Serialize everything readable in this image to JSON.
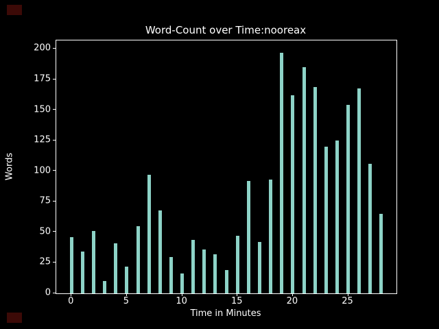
{
  "figure": {
    "background_color": "#000000",
    "text_color": "#ffffff",
    "spine_color": "#ffffff",
    "corner_marker_color": "#3c0a07"
  },
  "chart_data": {
    "type": "bar",
    "title": "Word-Count over Time:nooreax",
    "xlabel": "Time in Minutes",
    "ylabel": "Words",
    "bar_color": "#8dd3c7",
    "x": [
      0,
      1,
      2,
      3,
      4,
      5,
      6,
      7,
      8,
      9,
      10,
      11,
      12,
      13,
      14,
      15,
      16,
      17,
      18,
      19,
      20,
      21,
      22,
      23,
      24,
      25,
      26,
      27,
      28
    ],
    "values": [
      46,
      34,
      51,
      10,
      41,
      22,
      55,
      97,
      68,
      30,
      16,
      44,
      36,
      32,
      19,
      47,
      92,
      42,
      93,
      197,
      162,
      185,
      169,
      120,
      125,
      154,
      168,
      106,
      65
    ],
    "xticks": [
      0,
      5,
      10,
      15,
      20,
      25
    ],
    "yticks": [
      0,
      25,
      50,
      75,
      100,
      125,
      150,
      175,
      200
    ],
    "xlim": [
      -1.4,
      29.4
    ],
    "ylim": [
      0,
      207
    ],
    "grid": false,
    "legend": null
  }
}
